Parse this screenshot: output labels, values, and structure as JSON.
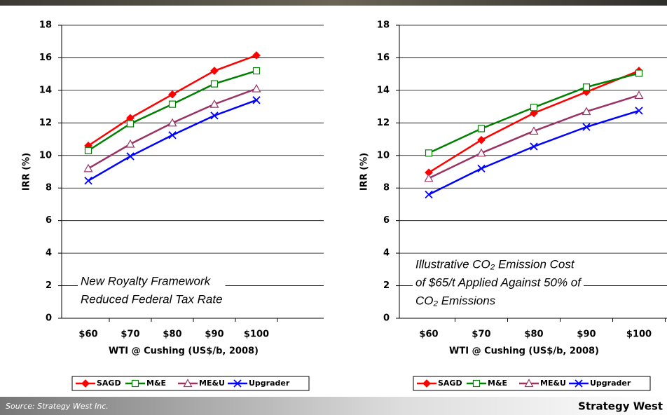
{
  "chart_data": [
    {
      "type": "line",
      "ylabel": "IRR (%)",
      "xlabel": "WTI @ Cushing (US$/b, 2008)",
      "categories": [
        "$60",
        "$70",
        "$80",
        "$90",
        "$100"
      ],
      "ylim": [
        0,
        18
      ],
      "yticks": [
        0,
        2,
        4,
        6,
        8,
        10,
        12,
        14,
        16,
        18
      ],
      "grid": true,
      "annotation": [
        "New Royalty Framework",
        "Reduced Federal Tax Rate"
      ],
      "series": [
        {
          "name": "SAGD",
          "color": "#ff0000",
          "marker": "diamond",
          "values": [
            10.6,
            12.3,
            13.75,
            15.2,
            16.15
          ]
        },
        {
          "name": "M&E",
          "color": "#008000",
          "marker": "square",
          "values": [
            10.3,
            11.95,
            13.15,
            14.4,
            15.2
          ]
        },
        {
          "name": "ME&U",
          "color": "#993366",
          "marker": "triangle",
          "values": [
            9.2,
            10.7,
            12.0,
            13.15,
            14.1
          ]
        },
        {
          "name": "Upgrader",
          "color": "#0000ff",
          "marker": "x",
          "values": [
            8.45,
            9.95,
            11.25,
            12.45,
            13.4
          ]
        }
      ]
    },
    {
      "type": "line",
      "ylabel": "IRR (%)",
      "xlabel": "WTI @ Cushing (US$/b, 2008)",
      "categories": [
        "$60",
        "$70",
        "$80",
        "$90",
        "$100"
      ],
      "ylim": [
        0,
        18
      ],
      "yticks": [
        0,
        2,
        4,
        6,
        8,
        10,
        12,
        14,
        16,
        18
      ],
      "grid": true,
      "annotation": [
        "Illustrative CO₂ Emission Cost",
        "of $65/t Applied Against 50% of",
        "CO₂ Emissions"
      ],
      "series": [
        {
          "name": "SAGD",
          "color": "#ff0000",
          "marker": "diamond",
          "values": [
            8.95,
            10.95,
            12.6,
            13.9,
            15.2
          ]
        },
        {
          "name": "M&E",
          "color": "#008000",
          "marker": "square",
          "values": [
            10.15,
            11.65,
            12.95,
            14.2,
            15.05
          ]
        },
        {
          "name": "ME&U",
          "color": "#993366",
          "marker": "triangle",
          "values": [
            8.6,
            10.15,
            11.5,
            12.7,
            13.7
          ]
        },
        {
          "name": "Upgrader",
          "color": "#0000ff",
          "marker": "x",
          "values": [
            7.6,
            9.2,
            10.55,
            11.75,
            12.75
          ]
        }
      ]
    }
  ],
  "footer": {
    "source": "Source: Strategy West Inc.",
    "logo": "Strategy West"
  }
}
